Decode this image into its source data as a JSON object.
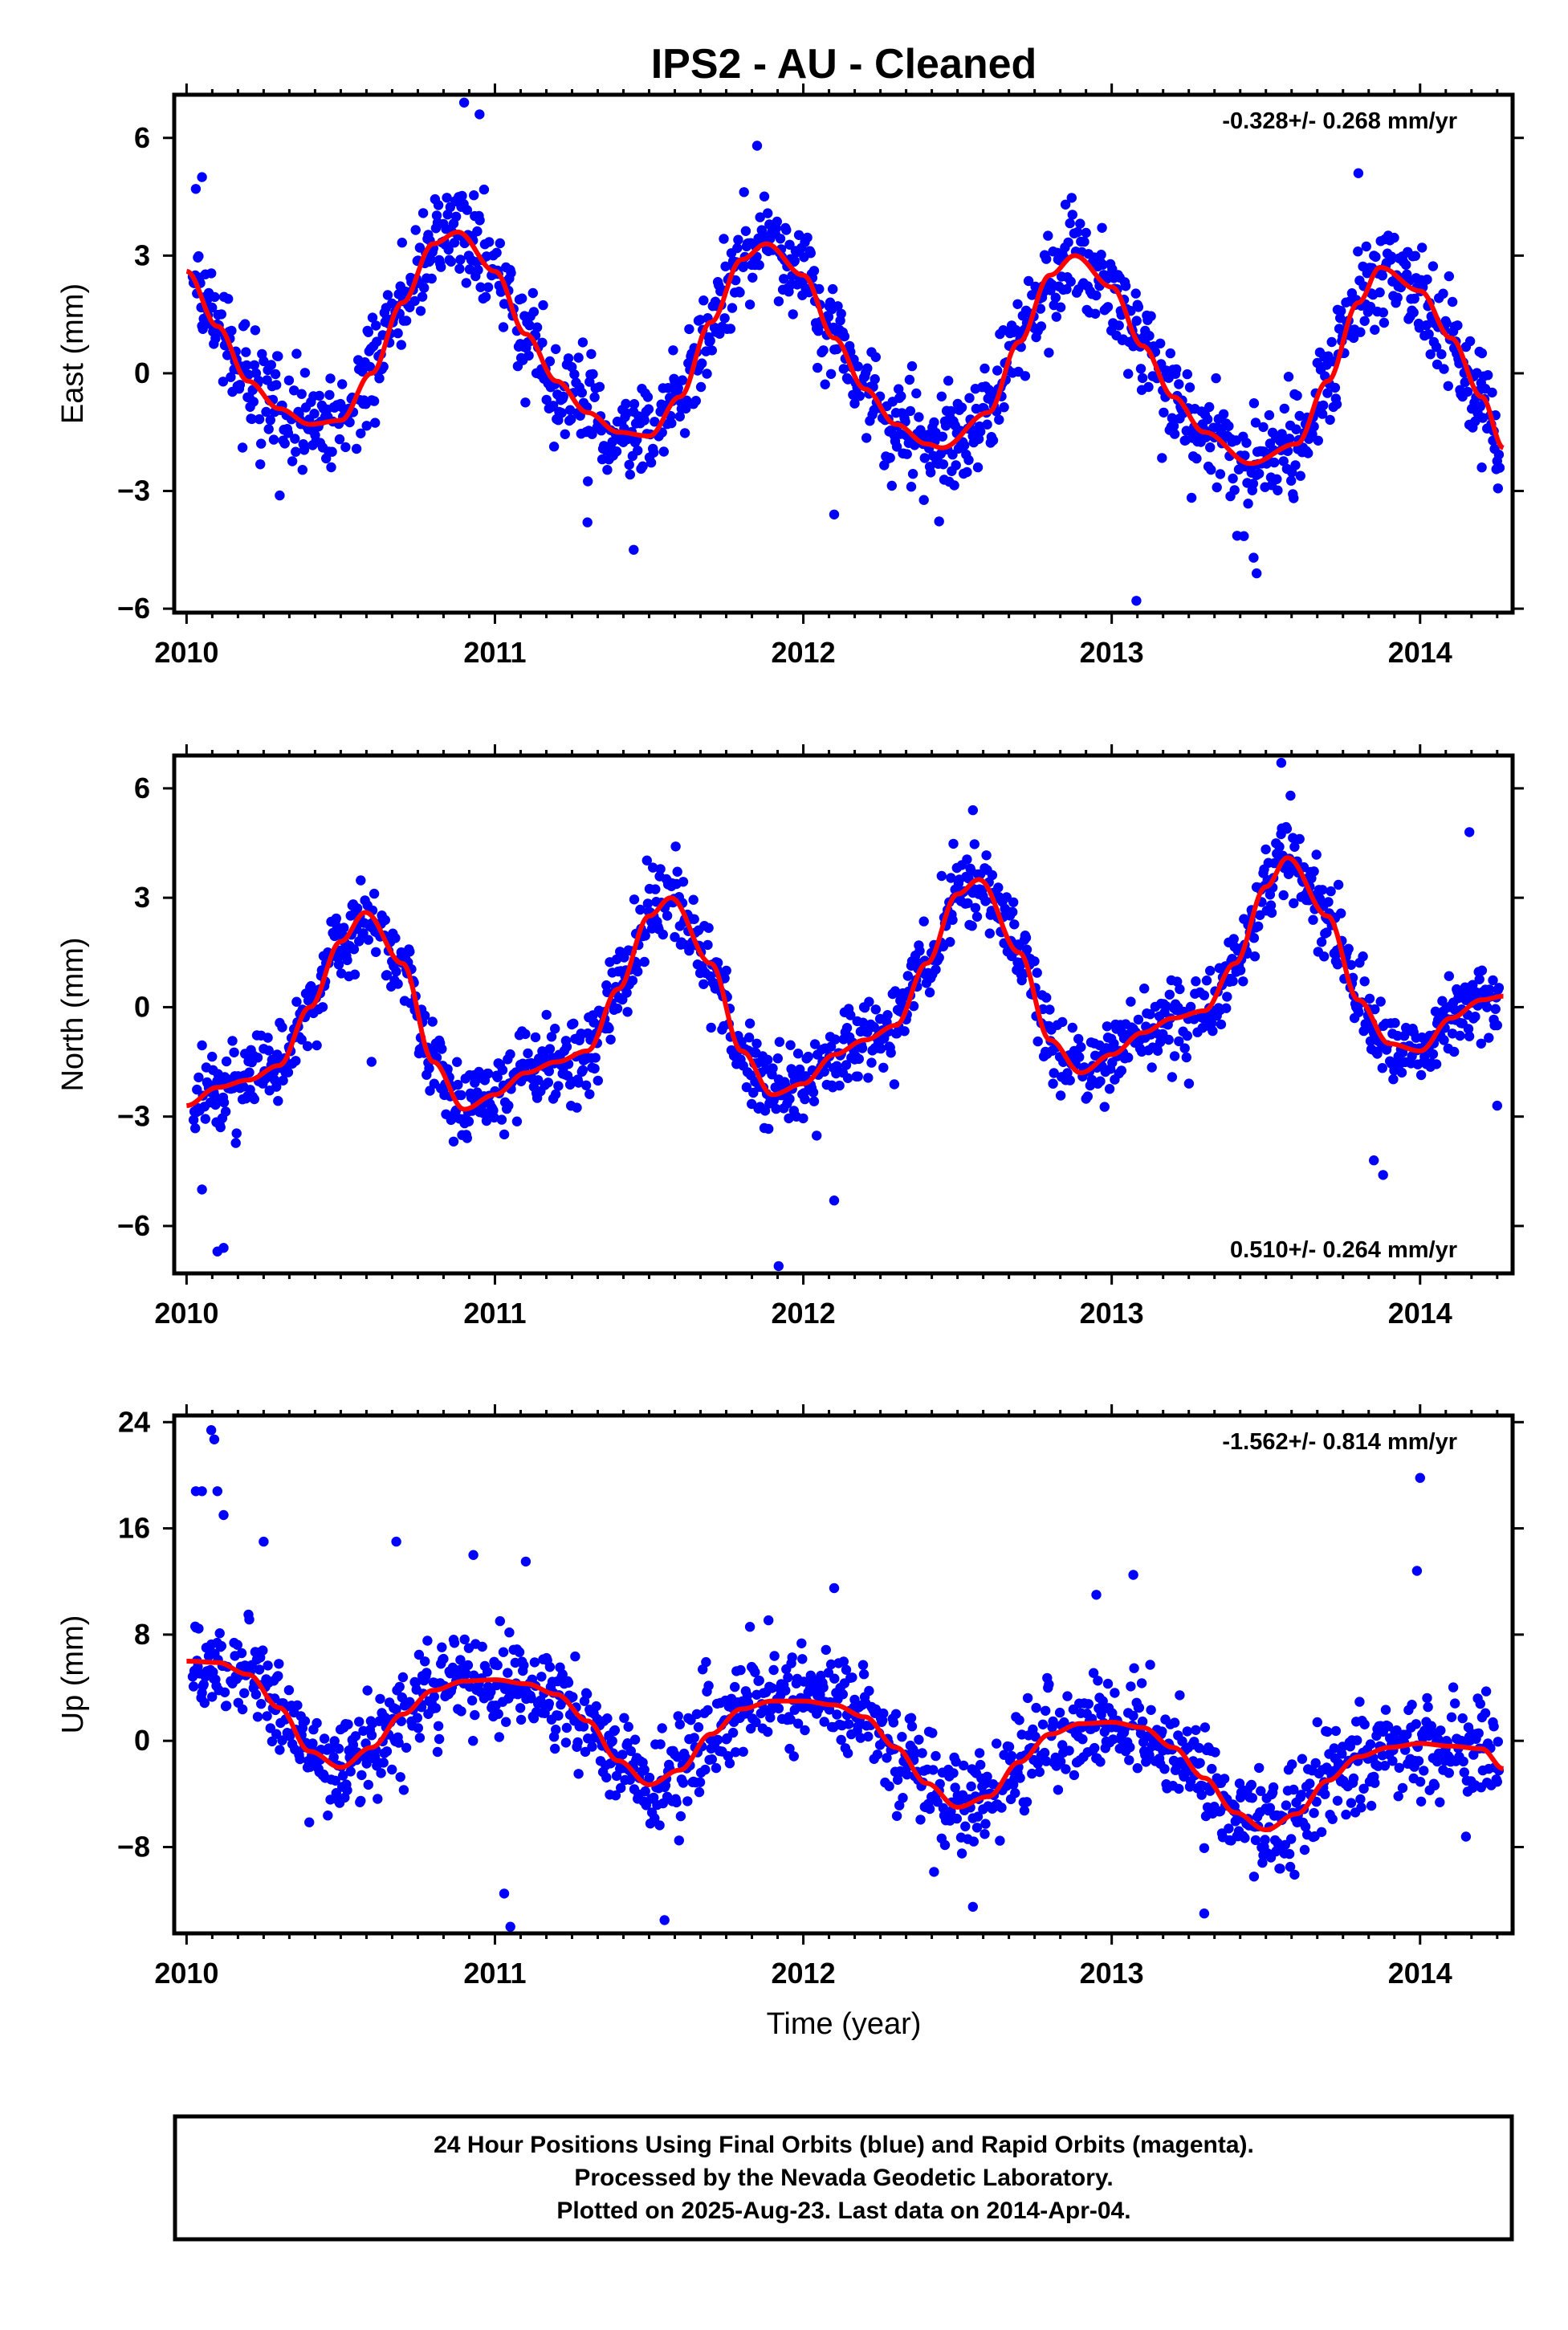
{
  "title": "IPS2  - AU - Cleaned",
  "xlabel": "Time (year)",
  "footer": {
    "lines": [
      "24 Hour Positions Using Final Orbits (blue) and Rapid Orbits (magenta).",
      "Processed by the Nevada Geodetic Laboratory.",
      "Plotted on 2025-Aug-23. Last data on 2014-Apr-04."
    ]
  },
  "colors": {
    "data": "#0000ff",
    "fit": "#ff0000",
    "frame": "#000000",
    "background": "#ffffff"
  },
  "chart_data": [
    {
      "type": "scatter",
      "name": "east",
      "ylabel": "East (mm)",
      "rate_label": "-0.328+/- 0.268 mm/yr",
      "xlim": [
        2009.96,
        2014.3
      ],
      "ylim": [
        -6.1,
        7.1
      ],
      "xticks": [
        2010,
        2011,
        2012,
        2013,
        2014
      ],
      "yticks": [
        6,
        3,
        0,
        -3,
        -6
      ],
      "ytick_labels": [
        "6",
        "3",
        "0",
        "−3",
        "−6"
      ],
      "fit_curve": {
        "x": [
          2010.0,
          2010.1,
          2010.2,
          2010.3,
          2010.4,
          2010.5,
          2010.6,
          2010.7,
          2010.8,
          2010.88,
          2011.0,
          2011.1,
          2011.2,
          2011.3,
          2011.4,
          2011.5,
          2011.6,
          2011.7,
          2011.8,
          2011.88,
          2012.0,
          2012.1,
          2012.2,
          2012.3,
          2012.4,
          2012.45,
          2012.6,
          2012.7,
          2012.8,
          2012.88,
          2013.0,
          2013.1,
          2013.2,
          2013.3,
          2013.45,
          2013.6,
          2013.7,
          2013.8,
          2013.87,
          2014.0,
          2014.1,
          2014.2,
          2014.27
        ],
        "y": [
          2.6,
          1.2,
          -0.2,
          -0.9,
          -1.3,
          -1.2,
          0.0,
          1.8,
          3.3,
          3.6,
          2.6,
          1.0,
          -0.2,
          -1.0,
          -1.5,
          -1.6,
          -0.6,
          1.3,
          2.9,
          3.3,
          2.5,
          0.9,
          -0.4,
          -1.3,
          -1.8,
          -1.9,
          -1.0,
          0.8,
          2.5,
          3.0,
          2.2,
          0.7,
          -0.6,
          -1.5,
          -2.3,
          -1.8,
          -0.2,
          1.8,
          2.7,
          2.1,
          0.9,
          -0.6,
          -1.9
        ]
      },
      "noise": 1.15,
      "outliers": [
        [
          2010.03,
          4.7
        ],
        [
          2010.05,
          5.0
        ],
        [
          2010.9,
          6.9
        ],
        [
          2010.95,
          6.6
        ],
        [
          2011.3,
          -3.8
        ],
        [
          2011.45,
          -4.5
        ],
        [
          2011.85,
          5.8
        ],
        [
          2012.1,
          -3.6
        ],
        [
          2012.85,
          4.3
        ],
        [
          2013.08,
          -5.8
        ],
        [
          2013.47,
          -5.1
        ],
        [
          2013.46,
          -4.7
        ],
        [
          2013.8,
          5.1
        ],
        [
          2014.2,
          -2.4
        ]
      ]
    },
    {
      "type": "scatter",
      "name": "north",
      "ylabel": "North (mm)",
      "rate_label": "0.510+/- 0.264 mm/yr",
      "xlim": [
        2009.96,
        2014.3
      ],
      "ylim": [
        -7.3,
        6.9
      ],
      "xticks": [
        2010,
        2011,
        2012,
        2013,
        2014
      ],
      "yticks": [
        6,
        3,
        0,
        -3,
        -6
      ],
      "ytick_labels": [
        "6",
        "3",
        "0",
        "−3",
        "−6"
      ],
      "fit_curve": {
        "x": [
          2010.0,
          2010.1,
          2010.2,
          2010.3,
          2010.4,
          2010.5,
          2010.58,
          2010.7,
          2010.8,
          2010.9,
          2011.0,
          2011.1,
          2011.2,
          2011.3,
          2011.4,
          2011.5,
          2011.57,
          2011.7,
          2011.8,
          2011.9,
          2012.0,
          2012.1,
          2012.2,
          2012.3,
          2012.4,
          2012.5,
          2012.57,
          2012.7,
          2012.8,
          2012.9,
          2013.0,
          2013.1,
          2013.2,
          2013.3,
          2013.4,
          2013.5,
          2013.57,
          2013.7,
          2013.8,
          2013.9,
          2014.0,
          2014.1,
          2014.2,
          2014.27
        ],
        "y": [
          -2.7,
          -2.2,
          -2.0,
          -1.6,
          0.0,
          1.8,
          2.6,
          1.2,
          -1.5,
          -2.8,
          -2.4,
          -1.8,
          -1.5,
          -1.2,
          0.5,
          2.5,
          3.0,
          1.2,
          -1.2,
          -2.4,
          -2.1,
          -1.3,
          -0.9,
          -0.5,
          1.2,
          3.1,
          3.5,
          1.5,
          -0.9,
          -1.8,
          -1.3,
          -0.7,
          -0.3,
          -0.1,
          1.2,
          3.3,
          4.1,
          2.5,
          0.2,
          -1.0,
          -1.2,
          -0.3,
          0.2,
          0.3
        ]
      },
      "noise": 1.0,
      "outliers": [
        [
          2010.05,
          -5.0
        ],
        [
          2010.1,
          -6.7
        ],
        [
          2010.12,
          -6.6
        ],
        [
          2010.6,
          -1.5
        ],
        [
          2011.92,
          -7.1
        ],
        [
          2012.1,
          -5.3
        ],
        [
          2012.55,
          5.4
        ],
        [
          2013.55,
          6.7
        ],
        [
          2013.58,
          5.8
        ],
        [
          2013.85,
          -4.2
        ],
        [
          2013.88,
          -4.6
        ],
        [
          2014.16,
          4.8
        ],
        [
          2014.25,
          -2.7
        ]
      ]
    },
    {
      "type": "scatter",
      "name": "up",
      "ylabel": "Up (mm)",
      "rate_label": "-1.562+/- 0.814 mm/yr",
      "xlim": [
        2009.96,
        2014.3
      ],
      "ylim": [
        -14.5,
        24.5
      ],
      "xticks": [
        2010,
        2011,
        2012,
        2013,
        2014
      ],
      "yticks": [
        24,
        16,
        8,
        0,
        -8
      ],
      "ytick_labels": [
        "24",
        "16",
        "8",
        "0",
        "−8"
      ],
      "fit_curve": {
        "x": [
          2010.0,
          2010.1,
          2010.2,
          2010.3,
          2010.4,
          2010.5,
          2010.6,
          2010.7,
          2010.8,
          2010.9,
          2011.0,
          2011.1,
          2011.2,
          2011.3,
          2011.4,
          2011.5,
          2011.6,
          2011.7,
          2011.8,
          2011.9,
          2012.0,
          2012.1,
          2012.2,
          2012.3,
          2012.4,
          2012.5,
          2012.6,
          2012.7,
          2012.8,
          2012.9,
          2013.0,
          2013.1,
          2013.2,
          2013.3,
          2013.4,
          2013.5,
          2013.6,
          2013.7,
          2013.8,
          2013.9,
          2014.0,
          2014.1,
          2014.2,
          2014.27
        ],
        "y": [
          6.0,
          5.9,
          5.0,
          2.5,
          -0.8,
          -2.0,
          -0.5,
          2.0,
          3.8,
          4.5,
          4.6,
          4.3,
          3.5,
          1.5,
          -1.5,
          -3.3,
          -2.2,
          0.5,
          2.4,
          3.0,
          3.0,
          2.7,
          1.8,
          -0.5,
          -3.2,
          -5.0,
          -4.2,
          -1.6,
          0.5,
          1.3,
          1.4,
          1.0,
          -0.5,
          -2.8,
          -5.4,
          -6.7,
          -5.5,
          -3.0,
          -1.2,
          -0.5,
          -0.2,
          -0.4,
          -0.6,
          -2.1
        ]
      },
      "noise": 3.4,
      "outliers": [
        [
          2010.03,
          18.8
        ],
        [
          2010.05,
          18.8
        ],
        [
          2010.08,
          23.4
        ],
        [
          2010.09,
          22.7
        ],
        [
          2010.1,
          18.8
        ],
        [
          2010.12,
          17.0
        ],
        [
          2010.25,
          15.0
        ],
        [
          2010.68,
          15.0
        ],
        [
          2010.93,
          14.0
        ],
        [
          2011.03,
          -11.5
        ],
        [
          2011.05,
          -14.0
        ],
        [
          2011.1,
          13.5
        ],
        [
          2011.55,
          -13.5
        ],
        [
          2012.1,
          11.5
        ],
        [
          2012.55,
          -12.5
        ],
        [
          2012.95,
          11.0
        ],
        [
          2013.07,
          12.5
        ],
        [
          2013.3,
          -13.0
        ],
        [
          2014.0,
          19.8
        ],
        [
          2013.99,
          12.8
        ]
      ]
    }
  ]
}
